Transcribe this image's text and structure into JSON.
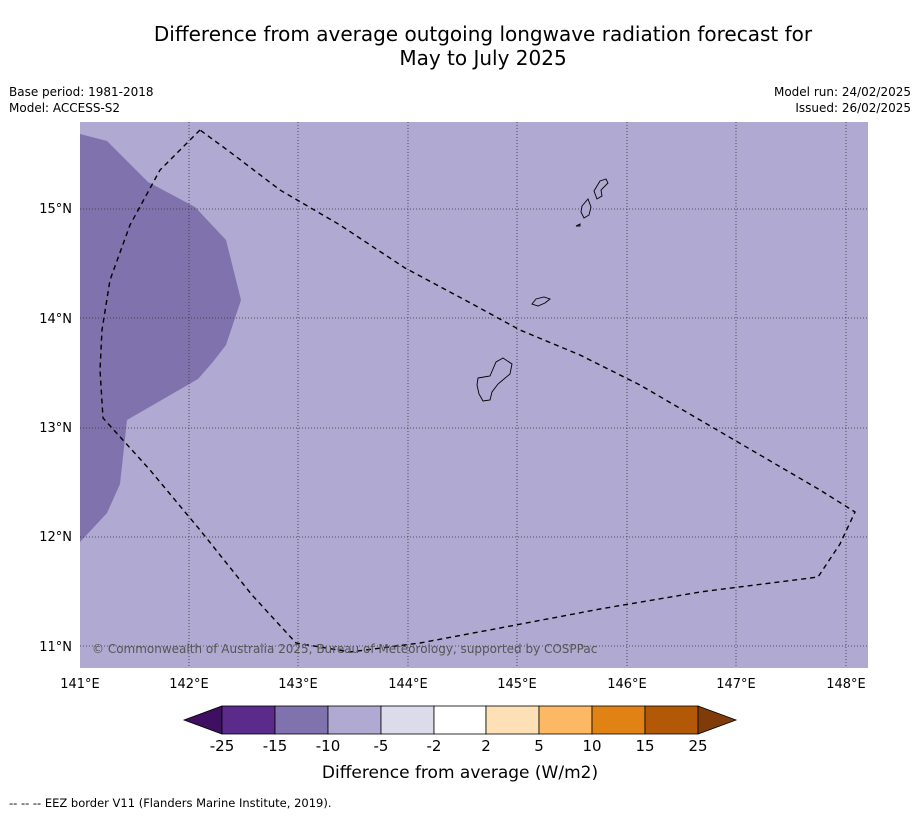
{
  "title_line1": "Difference from average outgoing longwave radiation forecast for",
  "title_line2": "May to July 2025",
  "meta_left": {
    "base_period": "Base period: 1981-2018",
    "model": "Model: ACCESS-S2"
  },
  "meta_right": {
    "model_run": "Model run: 24/02/2025",
    "issued": "Issued: 26/02/2025"
  },
  "map": {
    "lon_ticks": [
      "141°E",
      "142°E",
      "143°E",
      "144°E",
      "145°E",
      "146°E",
      "147°E",
      "148°E"
    ],
    "lat_ticks": [
      "15°N",
      "14°N",
      "13°N",
      "12°N",
      "11°N"
    ],
    "background_class_color": "#b0a9d1",
    "anomaly_class_color": "#7f72ad",
    "copyright": "© Commonwealth of Australia 2025, Bureau of Meteorology, supported by COSPPac"
  },
  "colorbar": {
    "label": "Difference from average (W/m2)",
    "ticks": [
      "-25",
      "-15",
      "-10",
      "-5",
      "-2",
      "2",
      "5",
      "10",
      "15",
      "25"
    ],
    "colors": [
      "#3f0f62",
      "#5b2b8c",
      "#7f72ad",
      "#b0a9d1",
      "#dcdbec",
      "#ffffff",
      "#fde0b5",
      "#fdb863",
      "#e08214",
      "#b35806",
      "#7f3b08"
    ]
  },
  "footnote": "--  --  -- EEZ border V11 (Flanders Marine Institute, 2019)."
}
